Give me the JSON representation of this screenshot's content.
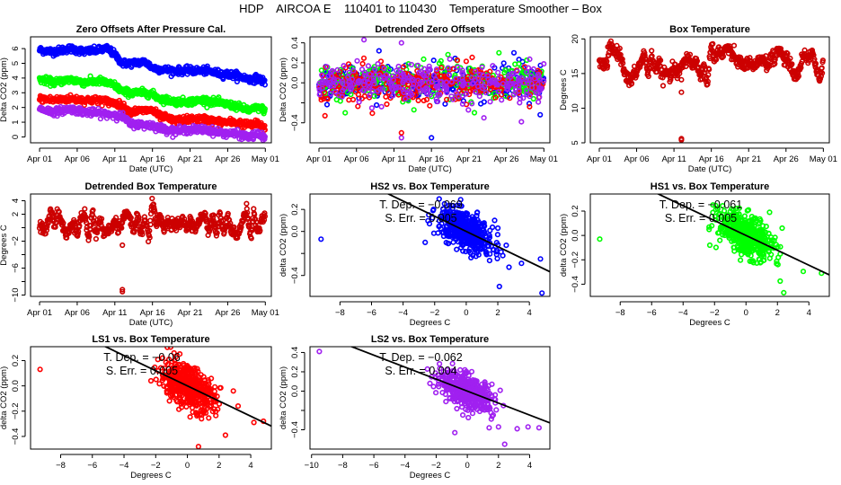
{
  "title": "HDP    AIRCOA E    110401 to 110430    Temperature Smoother – Box",
  "colors": {
    "HS2": "#0000ff",
    "HS1": "#00ff00",
    "LS1": "#ff0000",
    "LS2": "#a020f0",
    "box": "#cc0000",
    "fit_line": "#000000"
  },
  "chart_data": [
    {
      "id": "zero-offsets",
      "type": "scatter",
      "title": "Zero Offsets After Pressure Cal.",
      "xlabel": "Date (UTC)",
      "ylabel": "Delta CO2 (ppm)",
      "xlim": [
        -1.2,
        30.8
      ],
      "ylim": [
        -0.4,
        6.8
      ],
      "xticks": [
        0,
        5,
        10,
        15,
        20,
        25,
        30
      ],
      "xtick_labels": [
        "Apr 01",
        "Apr 06",
        "Apr 11",
        "Apr 16",
        "Apr 21",
        "Apr 26",
        "May 01"
      ],
      "yticks": [
        0,
        1,
        2,
        3,
        4,
        5,
        6
      ],
      "series": [
        {
          "name": "HS2",
          "color": "#0000ff",
          "x": [
            0,
            2,
            4,
            6,
            8,
            9,
            10,
            11,
            12,
            14,
            15,
            16,
            18,
            20,
            22,
            24,
            26,
            28,
            29,
            30
          ],
          "y": [
            5.9,
            5.8,
            6.0,
            5.8,
            5.9,
            6.0,
            5.6,
            5.0,
            5.0,
            5.1,
            4.7,
            4.6,
            4.5,
            4.5,
            4.5,
            4.3,
            4.2,
            3.9,
            4.0,
            3.7
          ]
        },
        {
          "name": "HS1",
          "color": "#00ff00",
          "x": [
            0,
            2,
            4,
            6,
            8,
            10,
            11,
            12,
            14,
            15,
            16,
            18,
            20,
            22,
            24,
            26,
            28,
            29,
            30
          ],
          "y": [
            3.9,
            3.7,
            3.9,
            3.7,
            3.8,
            3.5,
            3.1,
            3.0,
            3.0,
            2.9,
            2.6,
            2.4,
            2.4,
            2.5,
            2.3,
            2.1,
            1.8,
            2.0,
            1.8
          ]
        },
        {
          "name": "LS1",
          "color": "#ff0000",
          "x": [
            0,
            2,
            4,
            6,
            8,
            10,
            11,
            12,
            14,
            15,
            16,
            18,
            20,
            22,
            24,
            26,
            28,
            29,
            30
          ],
          "y": [
            2.6,
            2.5,
            2.6,
            2.5,
            2.5,
            2.3,
            2.1,
            1.7,
            1.8,
            1.8,
            1.4,
            1.1,
            1.2,
            1.2,
            1.0,
            1.0,
            0.8,
            0.9,
            0.6
          ]
        },
        {
          "name": "LS2",
          "color": "#a020f0",
          "x": [
            0,
            2,
            4,
            6,
            8,
            10,
            11,
            12,
            14,
            15,
            16,
            18,
            20,
            22,
            24,
            26,
            28,
            29,
            30
          ],
          "y": [
            1.9,
            1.7,
            1.9,
            1.7,
            1.6,
            1.5,
            1.4,
            0.9,
            0.8,
            0.8,
            0.6,
            0.4,
            0.5,
            0.5,
            0.3,
            0.2,
            0.0,
            0.2,
            -0.1
          ]
        }
      ]
    },
    {
      "id": "detrended-zero-offsets",
      "type": "scatter",
      "title": "Detrended Zero Offsets",
      "xlabel": "Date (UTC)",
      "ylabel": "Delta CO2 (ppm)",
      "xlim": [
        -1.2,
        30.8
      ],
      "ylim": [
        -0.6,
        0.46
      ],
      "xticks": [
        0,
        5,
        10,
        15,
        20,
        25,
        30
      ],
      "xtick_labels": [
        "Apr 01",
        "Apr 06",
        "Apr 11",
        "Apr 16",
        "Apr 21",
        "Apr 26",
        "May 01"
      ],
      "yticks": [
        -0.4,
        -0.2,
        0.0,
        0.2,
        0.4
      ],
      "ytick_labels": [
        "-0.4",
        "",
        "0.0",
        "0.2",
        "0.4"
      ],
      "range_band": [
        -0.2,
        0.2
      ],
      "outliers": [
        {
          "x": 6,
          "y": 0.43,
          "series": "LS2"
        },
        {
          "x": 11,
          "y": 0.4,
          "series": "LS2"
        },
        {
          "x": 11,
          "y": -0.55,
          "series": "LS2"
        },
        {
          "x": 11,
          "y": -0.5,
          "series": "LS1"
        },
        {
          "x": 15,
          "y": -0.55,
          "series": "HS2"
        },
        {
          "x": 8,
          "y": 0.32,
          "series": "HS2"
        },
        {
          "x": 26,
          "y": 0.3,
          "series": "HS2"
        },
        {
          "x": 24,
          "y": 0.3,
          "series": "HS1"
        },
        {
          "x": 0.8,
          "y": -0.33,
          "series": "LS1"
        },
        {
          "x": 22,
          "y": -0.35,
          "series": "LS2"
        },
        {
          "x": 27,
          "y": -0.39,
          "series": "LS2"
        },
        {
          "x": 29.5,
          "y": -0.32,
          "series": "HS2"
        },
        {
          "x": 3.5,
          "y": -0.3,
          "series": "HS1"
        }
      ]
    },
    {
      "id": "box-temperature",
      "type": "scatter",
      "title": "Box Temperature",
      "xlabel": "Date (UTC)",
      "ylabel": "Degrees C",
      "xlim": [
        -1.2,
        30.8
      ],
      "ylim": [
        5,
        20.3
      ],
      "xticks": [
        0,
        5,
        10,
        15,
        20,
        25,
        30
      ],
      "xtick_labels": [
        "Apr 01",
        "Apr 06",
        "Apr 11",
        "Apr 16",
        "Apr 21",
        "Apr 26",
        "May 01"
      ],
      "yticks": [
        5,
        10,
        15,
        20
      ],
      "series": [
        {
          "name": "Box",
          "color": "#cc0000",
          "x": [
            0,
            0.5,
            1,
            1.5,
            2,
            2.5,
            3,
            3.5,
            4,
            4.5,
            5,
            5.5,
            6,
            6.5,
            7,
            7.5,
            8,
            8.5,
            9,
            9.5,
            10,
            10.5,
            11,
            11.5,
            12,
            12.5,
            13,
            13.5,
            14,
            14.5,
            15,
            15.5,
            16,
            16.5,
            17,
            17.5,
            18,
            18.5,
            19,
            19.5,
            20,
            20.5,
            21,
            21.5,
            22,
            22.5,
            23,
            23.5,
            24,
            24.5,
            25,
            25.5,
            26,
            26.5,
            27,
            27.5,
            28,
            28.5,
            29,
            29.5,
            30
          ],
          "y": [
            16.8,
            16.0,
            16.5,
            19.0,
            18.0,
            18.2,
            17.0,
            15.0,
            13.5,
            14.5,
            15.2,
            16.5,
            17.8,
            15.0,
            17.5,
            15.5,
            16.8,
            14.5,
            15.2,
            14.5,
            15.8,
            14.8,
            16.0,
            16.8,
            17.5,
            16.0,
            17.0,
            14.5,
            16.0,
            13.5,
            19.5,
            17.0,
            18.5,
            17.5,
            19.0,
            18.0,
            17.5,
            16.8,
            16.5,
            16.0,
            16.8,
            15.8,
            16.0,
            17.0,
            17.2,
            16.0,
            17.5,
            17.0,
            18.8,
            17.5,
            17.0,
            16.5,
            15.0,
            14.5,
            16.5,
            18.0,
            17.0,
            18.5,
            15.8,
            14.0,
            16.5
          ]
        }
      ],
      "outliers": [
        {
          "x": 11,
          "y": 14.1
        },
        {
          "x": 11,
          "y": 12.3
        },
        {
          "x": 11,
          "y": 5.6
        },
        {
          "x": 11,
          "y": 5.4
        }
      ]
    },
    {
      "id": "detrended-box-temperature",
      "type": "scatter",
      "title": "Detrended Box Temperature",
      "xlabel": "Date (UTC)",
      "ylabel": "Degrees C",
      "xlim": [
        -1.2,
        30.8
      ],
      "ylim": [
        -10.2,
        5
      ],
      "xticks": [
        0,
        5,
        10,
        15,
        20,
        25,
        30
      ],
      "xtick_labels": [
        "Apr 01",
        "Apr 06",
        "Apr 11",
        "Apr 16",
        "Apr 21",
        "Apr 26",
        "May 01"
      ],
      "yticks": [
        -10,
        -8,
        -6,
        -4,
        -2,
        0,
        2,
        4
      ],
      "ytick_labels": [
        "-10",
        "",
        "-6",
        "",
        "-2",
        "",
        "2",
        "4"
      ],
      "series": [
        {
          "name": "Box",
          "color": "#cc0000",
          "x": [
            0,
            0.5,
            1,
            1.5,
            2,
            2.5,
            3,
            3.5,
            4,
            4.5,
            5,
            5.5,
            6,
            6.5,
            7,
            7.5,
            8,
            8.5,
            9,
            9.5,
            10,
            10.5,
            11,
            11.5,
            12,
            12.5,
            13,
            13.5,
            14,
            14.5,
            15,
            15.5,
            16,
            16.5,
            17,
            17.5,
            18,
            18.5,
            19,
            19.5,
            20,
            20.5,
            21,
            21.5,
            22,
            22.5,
            23,
            23.5,
            24,
            24.5,
            25,
            25.5,
            26,
            26.5,
            27,
            27.5,
            28,
            28.5,
            29,
            29.5,
            30
          ],
          "y": [
            0.3,
            -0.5,
            0.5,
            2.8,
            0.5,
            2.3,
            0.5,
            -1.2,
            -0.5,
            1.2,
            -0.8,
            1.5,
            2.0,
            -1.5,
            2.0,
            -0.8,
            1.5,
            -0.8,
            0.0,
            -0.5,
            1.2,
            -0.2,
            1.0,
            2.2,
            1.5,
            -0.5,
            1.8,
            -0.8,
            1.5,
            -2.0,
            4.3,
            0.5,
            1.5,
            0.2,
            1.2,
            0.2,
            0.5,
            0.2,
            1.2,
            0.0,
            1.0,
            -0.3,
            0.5,
            1.5,
            1.8,
            -0.5,
            1.8,
            -1.2,
            2.0,
            -0.5,
            1.5,
            -0.5,
            -1.0,
            -0.8,
            1.0,
            3.0,
            -1.2,
            2.2,
            -0.8,
            1.2,
            2.0
          ]
        }
      ],
      "outliers": [
        {
          "x": 11,
          "y": -2.6
        },
        {
          "x": 11,
          "y": -9.2
        },
        {
          "x": 11,
          "y": -9.5
        }
      ]
    },
    {
      "id": "hs2-vs-box",
      "type": "scatter",
      "title": "HS2 vs. Box Temperature",
      "xlabel": "Degrees C",
      "ylabel": "delta CO2 (ppm)",
      "color": "#0000ff",
      "xlim": [
        -9.9,
        5.3
      ],
      "ylim": [
        -0.59,
        0.34
      ],
      "xticks": [
        -8,
        -6,
        -4,
        -2,
        0,
        2,
        4
      ],
      "yticks": [
        -0.4,
        -0.2,
        0.0,
        0.2
      ],
      "ytick_labels": [
        "-0.4",
        "",
        "0.0",
        "0.2"
      ],
      "annotation": {
        "line1": "T. Dep. =  −0.069",
        "line2": "S. Err. =  0.005"
      },
      "slope": -0.069,
      "intercept": 0.0,
      "cloud_center": [
        0.0,
        0.0
      ],
      "outliers": [
        [
          -9.2,
          -0.07
        ],
        [
          -2.6,
          -0.1
        ],
        [
          4.8,
          -0.56
        ],
        [
          2.1,
          -0.5
        ],
        [
          4.7,
          -0.25
        ],
        [
          3.5,
          -0.29
        ],
        [
          1.8,
          0.1
        ],
        [
          -2.1,
          0.19
        ]
      ]
    },
    {
      "id": "hs1-vs-box",
      "type": "scatter",
      "title": "HS1 vs. Box Temperature",
      "xlabel": "Degrees C",
      "ylabel": "delta CO2 (ppm)",
      "color": "#00ff00",
      "xlim": [
        -9.9,
        5.3
      ],
      "ylim": [
        -0.5,
        0.34
      ],
      "xticks": [
        -8,
        -6,
        -4,
        -2,
        0,
        2,
        4
      ],
      "yticks": [
        -0.4,
        -0.2,
        0.0,
        0.2
      ],
      "annotation": {
        "line1": "T. Dep. =  −0.061",
        "line2": "S. Err. =  0.005"
      },
      "slope": -0.061,
      "intercept": 0.0,
      "cloud_center": [
        0.0,
        0.0
      ],
      "outliers": [
        [
          -9.3,
          -0.03
        ],
        [
          2.4,
          -0.47
        ],
        [
          4.8,
          -0.31
        ],
        [
          -2.3,
          -0.08
        ],
        [
          2.3,
          0.06
        ],
        [
          1.5,
          0.19
        ],
        [
          -2.1,
          0.25
        ]
      ]
    },
    {
      "id": "ls1-vs-box",
      "type": "scatter",
      "title": "LS1 vs. Box Temperature",
      "xlabel": "Degrees C",
      "ylabel": "delta CO2 (ppm)",
      "color": "#ff0000",
      "xlim": [
        -9.9,
        5.3
      ],
      "ylim": [
        -0.5,
        0.31
      ],
      "xticks": [
        -8,
        -6,
        -4,
        -2,
        0,
        2,
        4
      ],
      "yticks": [
        -0.4,
        -0.2,
        0.0,
        0.2
      ],
      "annotation": {
        "line1": "T. Dep. =  −0.06",
        "line2": "S. Err. =  0.005"
      },
      "slope": -0.06,
      "intercept": 0.0,
      "cloud_center": [
        0.0,
        0.0
      ],
      "outliers": [
        [
          -9.3,
          0.13
        ],
        [
          0.7,
          -0.48
        ],
        [
          4.8,
          -0.28
        ],
        [
          4.2,
          -0.29
        ],
        [
          2.4,
          -0.39
        ],
        [
          2.9,
          -0.04
        ],
        [
          3.2,
          -0.16
        ],
        [
          -2.3,
          0.04
        ]
      ]
    },
    {
      "id": "ls2-vs-box",
      "type": "scatter",
      "title": "LS2 vs. Box Temperature",
      "xlabel": "Degrees C",
      "ylabel": "delta CO2 (ppm)",
      "color": "#a020f0",
      "xlim": [
        -10.1,
        5.3
      ],
      "ylim": [
        -0.6,
        0.46
      ],
      "xticks": [
        -10,
        -8,
        -6,
        -4,
        -2,
        0,
        2,
        4
      ],
      "yticks": [
        -0.4,
        -0.2,
        0.0,
        0.2,
        0.4
      ],
      "ytick_labels": [
        "-0.4",
        "",
        "0.0",
        "0.2",
        "0.4"
      ],
      "annotation": {
        "line1": "T. Dep. =  −0.062",
        "line2": "S. Err. =  0.004"
      },
      "slope": -0.062,
      "intercept": 0.0,
      "cloud_center": [
        0.0,
        0.0
      ],
      "outliers": [
        [
          -9.5,
          0.41
        ],
        [
          2.4,
          -0.55
        ],
        [
          -0.8,
          -0.43
        ],
        [
          1.4,
          -0.38
        ],
        [
          2.0,
          -0.37
        ],
        [
          3.2,
          -0.39
        ],
        [
          3.9,
          -0.37
        ],
        [
          4.6,
          -0.38
        ],
        [
          -2.4,
          0.08
        ]
      ]
    }
  ]
}
